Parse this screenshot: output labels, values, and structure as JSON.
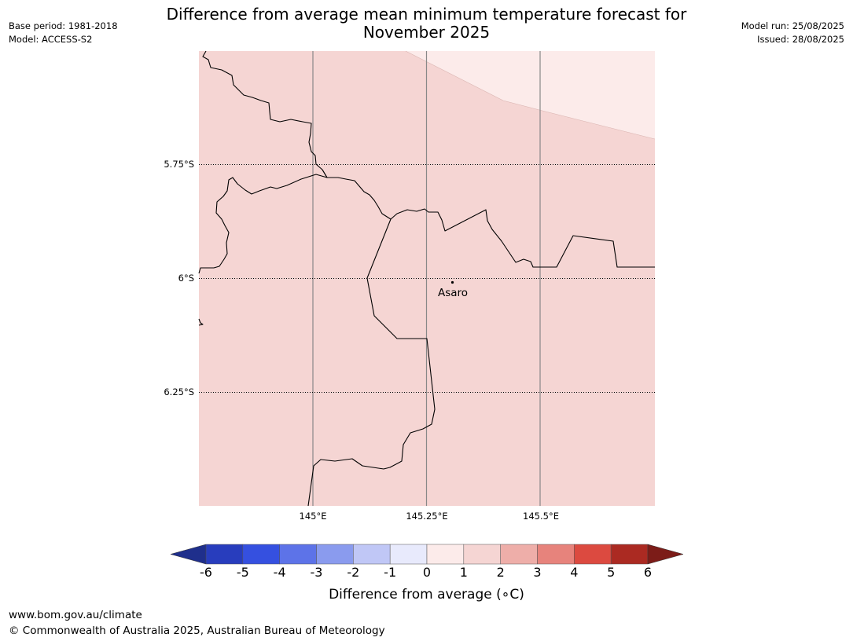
{
  "title_line1": "Difference from average mean minimum temperature forecast for",
  "title_line2": "November 2025",
  "base_period": "Base period: 1981-2018",
  "model": "Model: ACCESS-S2",
  "model_run": "Model run: 25/08/2025",
  "issued": "Issued: 28/08/2025",
  "map": {
    "lat_labels": [
      "5.75°S",
      "6°S",
      "6.25°S"
    ],
    "lon_labels": [
      "145°E",
      "145.25°E",
      "145.5°E"
    ],
    "place": {
      "name": "Asaro",
      "lon": 145.3,
      "lat": -6.01
    },
    "extent": {
      "lon_min": 144.75,
      "lon_max": 145.75,
      "lat_max": -5.5,
      "lat_min": -6.5
    },
    "anomaly_colors": {
      "main": "#f5d5d3",
      "light": "#fcebea"
    }
  },
  "colorbar": {
    "ticks": [
      "-6",
      "-5",
      "-4",
      "-3",
      "-2",
      "-1",
      "0",
      "1",
      "2",
      "3",
      "4",
      "5",
      "6"
    ],
    "label": "Difference from average (∘C)",
    "colors": [
      "#1f2f8c",
      "#283dbd",
      "#3550e0",
      "#5d73e8",
      "#8a9bee",
      "#c0c7f6",
      "#e8eafc",
      "#fcebea",
      "#f5d5d3",
      "#eeaea9",
      "#e7837c",
      "#dc4a40",
      "#ab2a22",
      "#7c1c18"
    ]
  },
  "footer": {
    "url": "www.bom.gov.au/climate",
    "copyright": "© Commonwealth of Australia 2025, Australian Bureau of Meteorology"
  }
}
